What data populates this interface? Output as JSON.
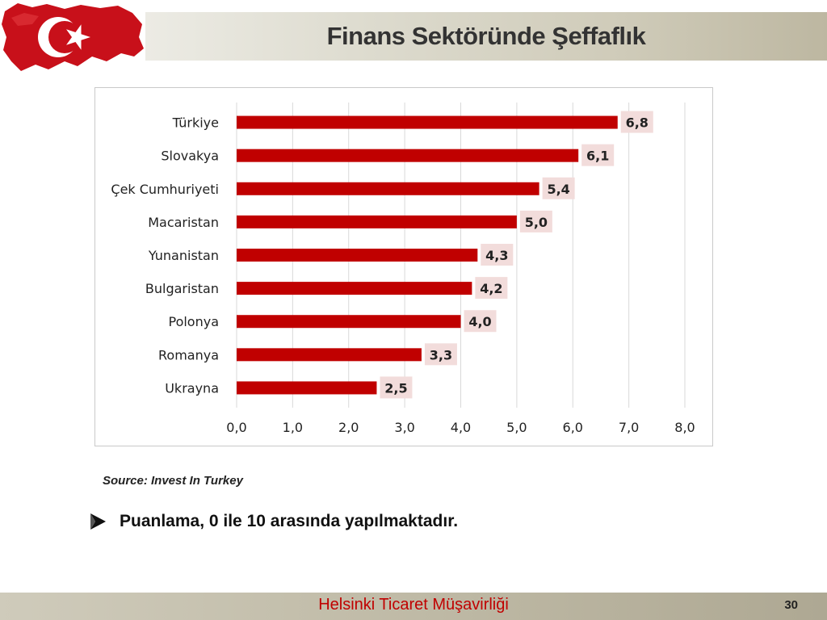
{
  "header": {
    "title": "Finans Sektöründe Şeffaflık"
  },
  "colors": {
    "bar": "#c00000",
    "label_bg": "#f2dcdb",
    "grid": "#d9d9d9",
    "footer_text": "#c00000"
  },
  "flag": {
    "icon": "turkey-map-flag-icon"
  },
  "chart_data": {
    "type": "bar",
    "orientation": "horizontal",
    "categories": [
      "Türkiye",
      "Slovakya",
      "Çek Cumhuriyeti",
      "Macaristan",
      "Yunanistan",
      "Bulgaristan",
      "Polonya",
      "Romanya",
      "Ukrayna"
    ],
    "values": [
      6.8,
      6.1,
      5.4,
      5.0,
      4.3,
      4.2,
      4.0,
      3.3,
      2.5
    ],
    "value_labels": [
      "6,8",
      "6,1",
      "5,4",
      "5,0",
      "4,3",
      "4,2",
      "4,0",
      "3,3",
      "2,5"
    ],
    "xlim": [
      0,
      8
    ],
    "x_ticks": [
      0,
      1,
      2,
      3,
      4,
      5,
      6,
      7,
      8
    ],
    "x_tick_labels": [
      "0,0",
      "1,0",
      "2,0",
      "3,0",
      "4,0",
      "5,0",
      "6,0",
      "7,0",
      "8,0"
    ],
    "grid": true,
    "legend": "none"
  },
  "source": "Source: Invest In Turkey",
  "bullet": {
    "icon": "arrow-bullet-icon",
    "text": "Puanlama, 0 ile 10 arasında yapılmaktadır."
  },
  "footer": {
    "text": "Helsinki Ticaret Müşavirliği",
    "page_number": "30"
  }
}
